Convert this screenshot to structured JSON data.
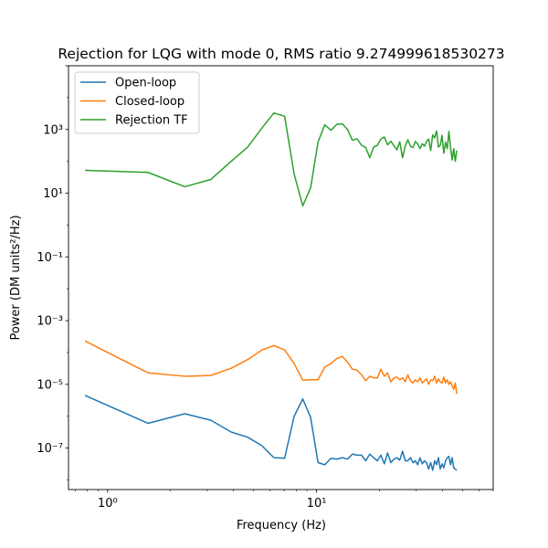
{
  "chart_data": {
    "type": "line",
    "title": "Rejection for LQG with mode 0, RMS ratio 9.274999618530273",
    "xlabel": "Frequency (Hz)",
    "ylabel": "Power (DM units²/Hz)",
    "xscale": "log",
    "yscale": "log",
    "xlim": [
      0.65,
      70
    ],
    "ylim": [
      5e-09,
      100000.0
    ],
    "xticks": [
      {
        "value": 1,
        "label": "10⁰"
      },
      {
        "value": 10,
        "label": "10¹"
      }
    ],
    "yticks": [
      {
        "value": 1e-07,
        "label": "10⁻⁷"
      },
      {
        "value": 1e-05,
        "label": "10⁻⁵"
      },
      {
        "value": 0.001,
        "label": "10⁻³"
      },
      {
        "value": 0.1,
        "label": "10⁻¹"
      },
      {
        "value": 10,
        "label": "10¹"
      },
      {
        "value": 1000,
        "label": "10³"
      }
    ],
    "legend_position": "top-left",
    "grid": false,
    "series": [
      {
        "name": "Open-loop",
        "color": "#1f77b4",
        "points": [
          [
            0.78,
            4.5e-06
          ],
          [
            1.56,
            6e-07
          ],
          [
            2.34,
            1.2e-06
          ],
          [
            3.12,
            7.5e-07
          ],
          [
            3.9,
            3.2e-07
          ],
          [
            4.68,
            2.2e-07
          ],
          [
            5.47,
            1.2e-07
          ],
          [
            6.25,
            5e-08
          ],
          [
            7.03,
            4.8e-08
          ],
          [
            7.81,
            1e-06
          ],
          [
            8.59,
            3.5e-06
          ],
          [
            9.37,
            9e-07
          ],
          [
            10.16,
            3.5e-08
          ],
          [
            10.94,
            3e-08
          ],
          [
            11.72,
            4.8e-08
          ],
          [
            12.5,
            4.5e-08
          ],
          [
            13.28,
            5e-08
          ],
          [
            14.06,
            4.5e-08
          ],
          [
            14.84,
            6.5e-08
          ],
          [
            15.62,
            6e-08
          ],
          [
            16.41,
            6e-08
          ],
          [
            17.19,
            4e-08
          ],
          [
            17.97,
            6.5e-08
          ],
          [
            18.75,
            5e-08
          ],
          [
            19.53,
            4e-08
          ],
          [
            20.31,
            6e-08
          ],
          [
            21.09,
            3.2e-08
          ],
          [
            21.87,
            7e-08
          ],
          [
            22.66,
            3.5e-08
          ],
          [
            23.44,
            4.5e-08
          ],
          [
            24.22,
            5e-08
          ],
          [
            25,
            4.2e-08
          ],
          [
            25.78,
            8e-08
          ],
          [
            26.56,
            4e-08
          ],
          [
            27.34,
            4e-08
          ],
          [
            28.12,
            5e-08
          ],
          [
            28.91,
            3.5e-08
          ],
          [
            29.69,
            4e-08
          ],
          [
            30.47,
            3e-08
          ],
          [
            31.25,
            5e-08
          ],
          [
            32.03,
            3.2e-08
          ],
          [
            32.81,
            4e-08
          ],
          [
            33.59,
            3.5e-08
          ],
          [
            34.37,
            2.2e-08
          ],
          [
            35.16,
            3.5e-08
          ],
          [
            35.94,
            2e-08
          ],
          [
            36.72,
            4e-08
          ],
          [
            37.5,
            3e-08
          ],
          [
            38.28,
            5e-08
          ],
          [
            39.06,
            2.2e-08
          ],
          [
            39.84,
            3.2e-08
          ],
          [
            40.62,
            2.4e-08
          ],
          [
            41.41,
            4e-08
          ],
          [
            42.19,
            5e-08
          ],
          [
            42.97,
            5.5e-08
          ],
          [
            43.75,
            3e-08
          ],
          [
            44.53,
            5e-08
          ],
          [
            45.31,
            2.4e-08
          ],
          [
            46.09,
            2.2e-08
          ],
          [
            46.87,
            2e-08
          ]
        ]
      },
      {
        "name": "Closed-loop",
        "color": "#ff7f0e",
        "points": [
          [
            0.78,
            0.00023
          ],
          [
            1.56,
            2.3e-05
          ],
          [
            2.34,
            1.8e-05
          ],
          [
            3.12,
            1.9e-05
          ],
          [
            3.9,
            3.2e-05
          ],
          [
            4.68,
            6e-05
          ],
          [
            5.47,
            0.00012
          ],
          [
            6.25,
            0.000165
          ],
          [
            7.03,
            0.00012
          ],
          [
            7.81,
            4.5e-05
          ],
          [
            8.59,
            1.35e-05
          ],
          [
            9.37,
            1.4e-05
          ],
          [
            10.16,
            1.4e-05
          ],
          [
            10.94,
            3.5e-05
          ],
          [
            11.72,
            4.5e-05
          ],
          [
            12.5,
            6.5e-05
          ],
          [
            13.28,
            7.5e-05
          ],
          [
            14.06,
            5e-05
          ],
          [
            14.84,
            3e-05
          ],
          [
            15.62,
            2.8e-05
          ],
          [
            16.41,
            2e-05
          ],
          [
            17.19,
            1.3e-05
          ],
          [
            17.97,
            1.8e-05
          ],
          [
            18.75,
            1.6e-05
          ],
          [
            19.53,
            1.6e-05
          ],
          [
            20.31,
            3e-05
          ],
          [
            21.09,
            1.8e-05
          ],
          [
            21.87,
            2.3e-05
          ],
          [
            22.66,
            1.2e-05
          ],
          [
            23.44,
            1.6e-05
          ],
          [
            24.22,
            1.7e-05
          ],
          [
            25,
            1.4e-05
          ],
          [
            25.78,
            1.6e-05
          ],
          [
            26.56,
            1.2e-05
          ],
          [
            27.34,
            2e-05
          ],
          [
            28.12,
            1.3e-05
          ],
          [
            28.91,
            1.1e-05
          ],
          [
            29.69,
            1.4e-05
          ],
          [
            30.47,
            1.2e-05
          ],
          [
            31.25,
            1.6e-05
          ],
          [
            32.03,
            1.1e-05
          ],
          [
            32.81,
            1.3e-05
          ],
          [
            33.59,
            1.5e-05
          ],
          [
            34.37,
            1e-05
          ],
          [
            35.16,
            1.4e-05
          ],
          [
            35.94,
            1.3e-05
          ],
          [
            36.72,
            1.8e-05
          ],
          [
            37.5,
            1.1e-05
          ],
          [
            38.28,
            1.5e-05
          ],
          [
            39.06,
            1.2e-05
          ],
          [
            39.84,
            1.1e-05
          ],
          [
            40.62,
            1.7e-05
          ],
          [
            41.41,
            1.1e-05
          ],
          [
            42.19,
            1.4e-05
          ],
          [
            42.97,
            1e-05
          ],
          [
            43.75,
            1.2e-05
          ],
          [
            44.53,
            9e-06
          ],
          [
            45.31,
            7e-06
          ],
          [
            46.09,
            1.1e-05
          ],
          [
            46.87,
            5e-06
          ]
        ]
      },
      {
        "name": "Rejection TF",
        "color": "#2ca02c",
        "points": [
          [
            0.78,
            52
          ],
          [
            1.56,
            45
          ],
          [
            2.34,
            16
          ],
          [
            3.12,
            27
          ],
          [
            3.9,
            100
          ],
          [
            4.68,
            280
          ],
          [
            5.47,
            1100
          ],
          [
            6.25,
            3300
          ],
          [
            7.03,
            2600
          ],
          [
            7.81,
            40
          ],
          [
            8.59,
            4
          ],
          [
            9.37,
            15
          ],
          [
            10.16,
            400
          ],
          [
            10.94,
            1400
          ],
          [
            11.72,
            950
          ],
          [
            12.5,
            1450
          ],
          [
            13.28,
            1500
          ],
          [
            14.06,
            1000
          ],
          [
            14.84,
            460
          ],
          [
            15.62,
            510
          ],
          [
            16.41,
            320
          ],
          [
            17.19,
            270
          ],
          [
            17.97,
            130
          ],
          [
            18.75,
            280
          ],
          [
            19.53,
            320
          ],
          [
            20.31,
            500
          ],
          [
            21.09,
            580
          ],
          [
            21.87,
            330
          ],
          [
            22.66,
            430
          ],
          [
            23.44,
            310
          ],
          [
            24.22,
            230
          ],
          [
            25,
            410
          ],
          [
            25.78,
            130
          ],
          [
            26.56,
            300
          ],
          [
            27.34,
            480
          ],
          [
            28.12,
            300
          ],
          [
            28.91,
            270
          ],
          [
            29.69,
            420
          ],
          [
            30.47,
            350
          ],
          [
            31.25,
            250
          ],
          [
            32.03,
            360
          ],
          [
            32.81,
            300
          ],
          [
            33.59,
            420
          ],
          [
            34.37,
            500
          ],
          [
            35.16,
            220
          ],
          [
            35.94,
            680
          ],
          [
            36.72,
            540
          ],
          [
            37.5,
            900
          ],
          [
            38.28,
            280
          ],
          [
            39.06,
            320
          ],
          [
            39.84,
            650
          ],
          [
            40.62,
            180
          ],
          [
            41.41,
            400
          ],
          [
            42.19,
            250
          ],
          [
            42.97,
            870
          ],
          [
            43.75,
            270
          ],
          [
            44.53,
            110
          ],
          [
            45.31,
            250
          ],
          [
            46.09,
            100
          ],
          [
            46.87,
            220
          ]
        ]
      }
    ]
  }
}
